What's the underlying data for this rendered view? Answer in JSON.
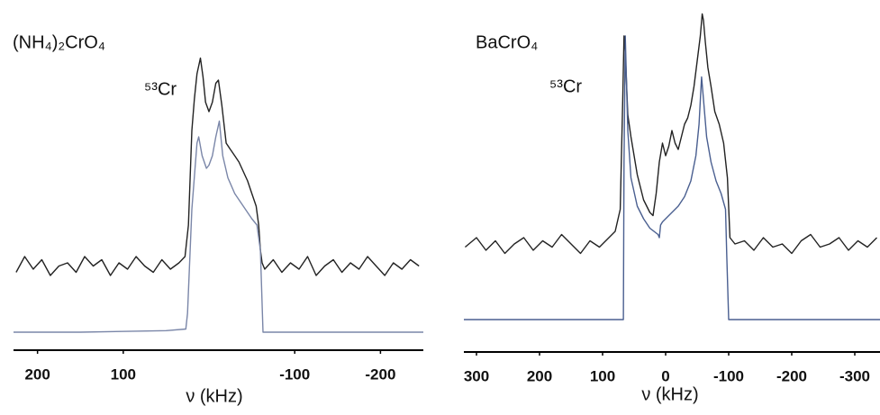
{
  "chart_data": [
    {
      "type": "line",
      "title": "(NH₄)₂CrO₄",
      "annotation": "⁵³Cr",
      "x_label": "ν  (kHz)",
      "xlim": [
        228,
        -250
      ],
      "xticks": [
        200,
        100,
        -100,
        -200
      ],
      "ylim": [
        0,
        110
      ],
      "series": [
        {
          "color": "#222222",
          "x": [
            225,
            215,
            205,
            195,
            185,
            175,
            165,
            155,
            145,
            135,
            125,
            115,
            105,
            95,
            85,
            75,
            65,
            55,
            45,
            35,
            28,
            24,
            22,
            20,
            17,
            14,
            10,
            7,
            4,
            0,
            -4,
            -8,
            -11,
            -15,
            -20,
            -25,
            -30,
            -35,
            -40,
            -45,
            -50,
            -55,
            -58,
            -60,
            -62,
            -65,
            -75,
            -85,
            -95,
            -105,
            -115,
            -125,
            -135,
            -145,
            -155,
            -165,
            -175,
            -185,
            -195,
            -205,
            -215,
            -225,
            -235,
            -245
          ],
          "values": [
            25,
            30,
            26,
            29,
            24,
            27,
            28,
            25,
            30,
            27,
            29,
            24,
            28,
            26,
            30,
            27,
            25,
            29,
            26,
            28,
            30,
            40,
            55,
            70,
            80,
            88,
            93,
            87,
            79,
            76,
            79,
            85,
            86,
            78,
            66,
            64,
            62,
            60,
            57,
            54,
            50,
            46,
            40,
            32,
            28,
            26,
            29,
            25,
            28,
            26,
            30,
            24,
            27,
            29,
            25,
            28,
            26,
            30,
            27,
            24,
            28,
            26,
            29,
            27
          ]
        },
        {
          "color": "#7a86a8",
          "x": [
            228,
            150,
            50,
            27,
            25,
            20,
            14,
            12,
            8,
            3,
            0,
            -4,
            -8,
            -12,
            -16,
            -22,
            -30,
            -40,
            -50,
            -56,
            -60,
            -63,
            -70,
            -150,
            -250
          ],
          "values": [
            6,
            6,
            6.5,
            7,
            12,
            45,
            66,
            68,
            62,
            58,
            59,
            62,
            68,
            73,
            62,
            55,
            50,
            46,
            42,
            40,
            32,
            6,
            6,
            6,
            6
          ]
        }
      ]
    },
    {
      "type": "line",
      "title": "BaCrO₄",
      "annotation": "⁵³Cr",
      "x_label": "ν  (kHz)",
      "xlim": [
        320,
        -340
      ],
      "xticks": [
        300,
        200,
        100,
        0,
        -100,
        -200,
        -300
      ],
      "ylim": [
        0,
        110
      ],
      "series": [
        {
          "color": "#222222",
          "x": [
            318,
            300,
            285,
            270,
            255,
            240,
            225,
            210,
            195,
            180,
            165,
            150,
            135,
            120,
            105,
            90,
            80,
            72,
            68,
            66,
            64,
            60,
            55,
            50,
            45,
            40,
            35,
            30,
            25,
            20,
            15,
            10,
            5,
            0,
            -5,
            -10,
            -15,
            -20,
            -25,
            -30,
            -35,
            -40,
            -45,
            -50,
            -55,
            -58,
            -60,
            -63,
            -67,
            -72,
            -78,
            -85,
            -92,
            -98,
            -102,
            -110,
            -125,
            -140,
            -155,
            -170,
            -185,
            -200,
            -215,
            -230,
            -245,
            -260,
            -275,
            -290,
            -305,
            -320,
            -335
          ],
          "values": [
            33,
            36,
            32,
            35,
            31,
            34,
            36,
            32,
            35,
            33,
            37,
            34,
            31,
            35,
            33,
            36,
            38,
            45,
            80,
            100,
            95,
            75,
            68,
            62,
            56,
            52,
            48,
            46,
            44,
            43,
            50,
            60,
            66,
            62,
            65,
            70,
            66,
            64,
            68,
            72,
            74,
            78,
            84,
            92,
            100,
            107,
            105,
            98,
            90,
            84,
            76,
            72,
            66,
            55,
            36,
            34,
            35,
            32,
            36,
            33,
            34,
            31,
            35,
            37,
            33,
            34,
            36,
            32,
            35,
            33,
            36
          ]
        },
        {
          "color": "#4a5f90",
          "x": [
            320,
            150,
            67,
            66,
            64,
            60,
            55,
            45,
            35,
            25,
            12,
            10,
            8,
            5,
            0,
            -10,
            -20,
            -30,
            -40,
            -48,
            -53,
            -57,
            -60,
            -65,
            -72,
            -80,
            -88,
            -95,
            -97,
            -100,
            -150,
            -250,
            -340
          ],
          "values": [
            10,
            10,
            10,
            60,
            100,
            70,
            55,
            46,
            42,
            39,
            37,
            36,
            40,
            41,
            42,
            44,
            46,
            49,
            54,
            62,
            72,
            87,
            80,
            68,
            60,
            54,
            50,
            45,
            30,
            10,
            10,
            10,
            10
          ]
        }
      ]
    }
  ]
}
